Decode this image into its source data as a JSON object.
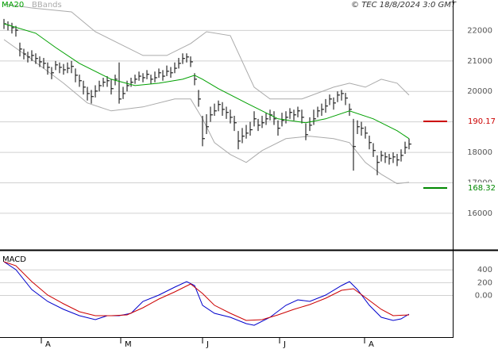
{
  "chart_data": [
    {
      "type": "hlc",
      "source": "© TEC 18/8/2024 3:0 GMT",
      "xlim": [
        -1,
        113
      ],
      "ylim": [
        14800,
        23000
      ],
      "yticks": [
        22000,
        21000,
        20000,
        19000,
        18000,
        17000,
        16000
      ],
      "grid": true,
      "bar_color": "#000000",
      "high": [
        22380,
        22300,
        22250,
        22150,
        21600,
        21400,
        21300,
        21350,
        21250,
        21150,
        21100,
        20950,
        20800,
        21000,
        20950,
        20900,
        20950,
        21000,
        20750,
        20550,
        20350,
        20150,
        20050,
        20200,
        20350,
        20450,
        20500,
        20400,
        20550,
        20950,
        20150,
        20350,
        20450,
        20550,
        20650,
        20600,
        20700,
        20550,
        20650,
        20750,
        20700,
        20850,
        20800,
        20950,
        21100,
        21250,
        21250,
        21150,
        20600,
        20050,
        19200,
        19250,
        19500,
        19600,
        19700,
        19650,
        19500,
        19400,
        19200,
        18700,
        18800,
        18900,
        19000,
        19350,
        19100,
        19200,
        19300,
        19400,
        19350,
        19050,
        19300,
        19350,
        19450,
        19400,
        19500,
        19400,
        18950,
        19150,
        19400,
        19500,
        19600,
        19750,
        19900,
        19800,
        20000,
        20050,
        19950,
        19600,
        19100,
        19050,
        19000,
        18850,
        18550,
        18300,
        17900,
        18050,
        18000,
        17950,
        18000,
        17950,
        18100,
        18350,
        18450
      ],
      "low": [
        22050,
        22000,
        21900,
        21800,
        21150,
        21050,
        20950,
        21000,
        20900,
        20800,
        20750,
        20550,
        20400,
        20700,
        20600,
        20550,
        20600,
        20600,
        20300,
        20150,
        19900,
        19700,
        19600,
        19800,
        20000,
        20150,
        20150,
        19900,
        20200,
        19600,
        19750,
        20000,
        20150,
        20250,
        20350,
        20300,
        20400,
        20250,
        20300,
        20450,
        20350,
        20500,
        20450,
        20600,
        20750,
        20900,
        20950,
        20800,
        20200,
        19500,
        18200,
        18600,
        19000,
        19200,
        19350,
        19200,
        19100,
        18950,
        18700,
        18100,
        18300,
        18450,
        18550,
        18850,
        18700,
        18800,
        18900,
        19050,
        18900,
        18550,
        18850,
        18950,
        19100,
        19050,
        19150,
        18950,
        18400,
        18700,
        18900,
        19150,
        19200,
        19300,
        19550,
        19400,
        19650,
        19700,
        19550,
        19200,
        17400,
        18600,
        18550,
        18450,
        18100,
        17850,
        17250,
        17700,
        17650,
        17600,
        17650,
        17550,
        17700,
        17950,
        18100
      ],
      "close": [
        22220,
        22170,
        22090,
        22010,
        21390,
        21230,
        21130,
        21180,
        21080,
        20970,
        20920,
        20790,
        20610,
        20870,
        20790,
        20710,
        20760,
        20820,
        20530,
        20350,
        20140,
        19930,
        19830,
        20010,
        20190,
        20300,
        20350,
        20090,
        20400,
        19750,
        19930,
        20190,
        20300,
        20400,
        20500,
        20450,
        20560,
        20400,
        20450,
        20610,
        20500,
        20660,
        20610,
        20760,
        20920,
        21080,
        21130,
        20970,
        20400,
        19750,
        18450,
        18840,
        19230,
        19360,
        19570,
        19410,
        19310,
        19150,
        18970,
        18370,
        18530,
        18630,
        18740,
        19100,
        18890,
        18970,
        19100,
        19230,
        19100,
        18790,
        19050,
        19150,
        19310,
        19230,
        19360,
        19150,
        18580,
        18890,
        19100,
        19360,
        19410,
        19520,
        19750,
        19620,
        19880,
        19930,
        19780,
        19410,
        18190,
        18840,
        18790,
        18630,
        18320,
        18060,
        17670,
        17900,
        17850,
        17800,
        17850,
        17750,
        17900,
        18160,
        18270
      ],
      "series": [
        {
          "name": "MA20",
          "color": "#00a000",
          "x": [
            0,
            8,
            13,
            19,
            27,
            33,
            39,
            45,
            48,
            50,
            54,
            61,
            69,
            76,
            81,
            87,
            93,
            99,
            102
          ],
          "values": [
            22220,
            21910,
            21440,
            20920,
            20400,
            20190,
            20270,
            20400,
            20530,
            20400,
            20090,
            19620,
            19100,
            18970,
            19100,
            19360,
            19100,
            18710,
            18450
          ]
        }
      ],
      "bands": {
        "name": "BBands",
        "color": "#aaaaaa",
        "upper": {
          "x": [
            0,
            7,
            17,
            23,
            29,
            35,
            41,
            47,
            51,
            57,
            63,
            67,
            75,
            83,
            87,
            91,
            95,
            99,
            102
          ],
          "values": [
            22870,
            22740,
            22610,
            21960,
            21570,
            21180,
            21180,
            21570,
            21960,
            21830,
            20140,
            19750,
            19750,
            20140,
            20270,
            20140,
            20400,
            20270,
            19880
          ]
        },
        "lower": {
          "x": [
            0,
            7,
            15,
            21,
            27,
            35,
            43,
            47,
            50,
            53,
            57,
            61,
            65,
            71,
            77,
            83,
            87,
            91,
            95,
            99,
            102
          ],
          "values": [
            21700,
            21050,
            20270,
            19620,
            19360,
            19490,
            19750,
            19750,
            19100,
            18320,
            17930,
            17670,
            18060,
            18450,
            18530,
            18450,
            18320,
            17670,
            17280,
            16970,
            17020
          ]
        }
      },
      "levels": [
        {
          "value": 19017,
          "label": "190.17",
          "color": "#cc0000"
        },
        {
          "value": 16832,
          "label": "168.32",
          "color": "#008800"
        }
      ]
    },
    {
      "type": "line",
      "title": "MACD",
      "xlim": [
        -1,
        113
      ],
      "ylim": [
        -650,
        675
      ],
      "yticks": [
        400,
        200,
        {
          "value": 0,
          "label": "0.00"
        }
      ],
      "grid": true,
      "xticks": [
        {
          "value": 9.4,
          "label": "A"
        },
        {
          "value": 29.4,
          "label": "M"
        },
        {
          "value": 50,
          "label": "J"
        },
        {
          "value": 69.4,
          "label": "J"
        },
        {
          "value": 90.8,
          "label": "A"
        }
      ],
      "series": [
        {
          "color": "#0000cc",
          "x": [
            0,
            3,
            7,
            11,
            15,
            19,
            23,
            26,
            29,
            32,
            35,
            39,
            43,
            46,
            48,
            50,
            53,
            57,
            61,
            63,
            67,
            71,
            74,
            77,
            81,
            85,
            87,
            89,
            92,
            95,
            98,
            100,
            102
          ],
          "values": [
            526,
            403,
            93,
            -93,
            -217,
            -316,
            -378,
            -316,
            -316,
            -278,
            -93,
            6,
            130,
            217,
            155,
            -154,
            -278,
            -340,
            -440,
            -465,
            -340,
            -154,
            -68,
            -93,
            6,
            155,
            217,
            93,
            -154,
            -340,
            -390,
            -365,
            -291
          ]
        },
        {
          "color": "#cc0000",
          "x": [
            0,
            3,
            7,
            11,
            15,
            19,
            23,
            27,
            31,
            35,
            39,
            43,
            47,
            50,
            53,
            57,
            61,
            65,
            69,
            73,
            77,
            81,
            85,
            88,
            91,
            95,
            98,
            102
          ],
          "values": [
            526,
            465,
            217,
            6,
            -130,
            -254,
            -316,
            -316,
            -303,
            -192,
            -56,
            56,
            180,
            31,
            -154,
            -278,
            -390,
            -378,
            -303,
            -217,
            -142,
            -43,
            81,
            105,
            -31,
            -217,
            -316,
            -303
          ]
        }
      ]
    }
  ]
}
